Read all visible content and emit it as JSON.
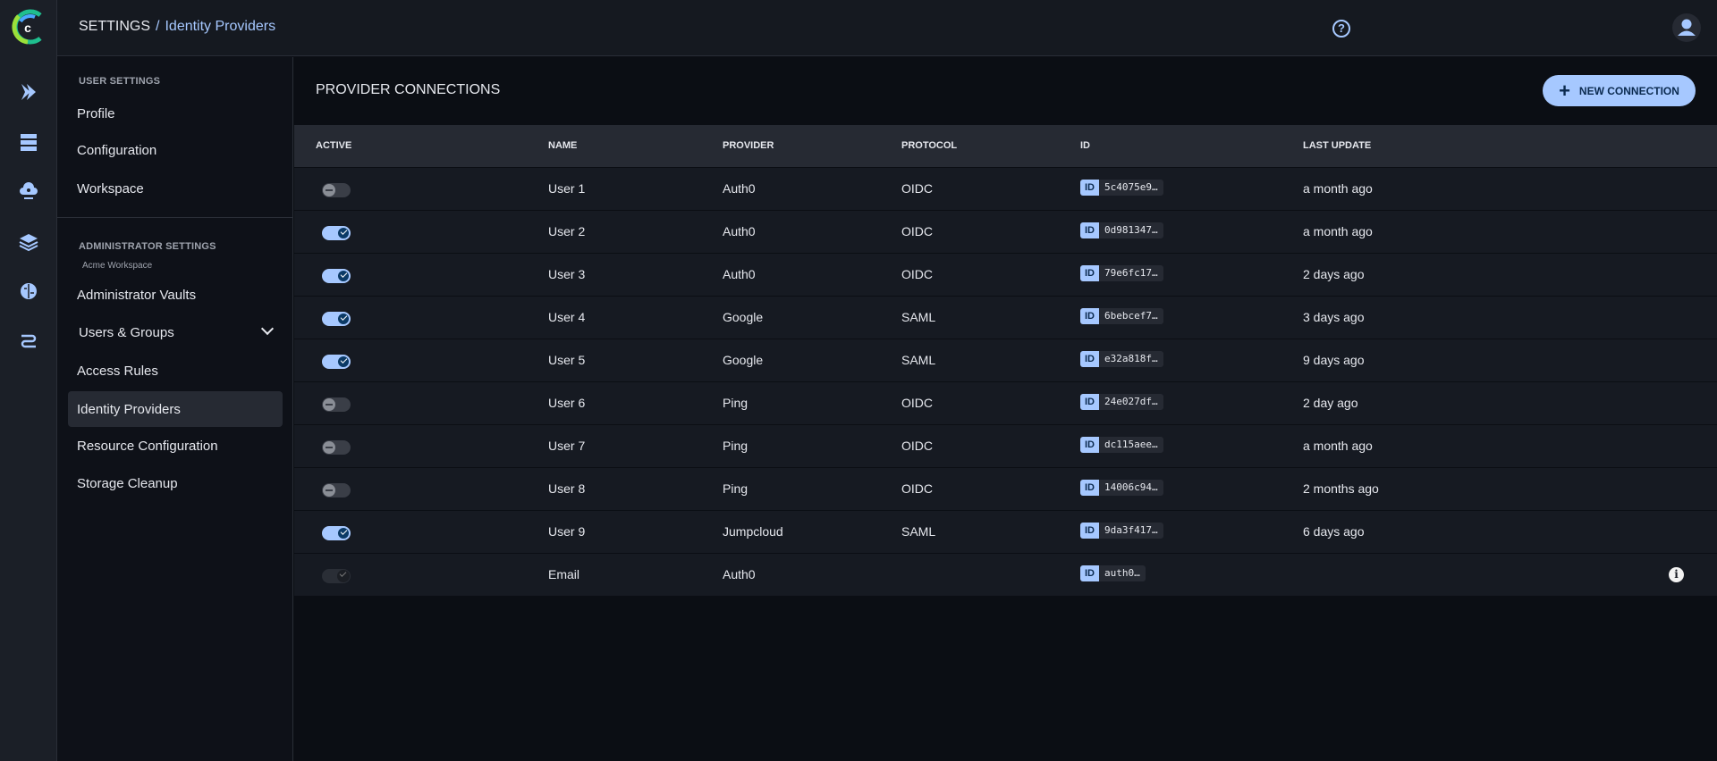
{
  "colors": {
    "accent": "#a6c8ff",
    "background": "#0b0e14",
    "row": "#161a22",
    "header": "#262a33"
  },
  "rail": {
    "icons": [
      "logo-icon",
      "pipelines-icon",
      "server-icon",
      "cloud-compute-icon",
      "layers-icon",
      "brain-icon",
      "workflow-icon"
    ]
  },
  "header": {
    "breadcrumb_root": "SETTINGS",
    "breadcrumb_sep": "/",
    "breadcrumb_current": "Identity Providers",
    "help_icon": "?"
  },
  "sidebar": {
    "user_label": "USER SETTINGS",
    "user_items": [
      {
        "label": "Profile"
      },
      {
        "label": "Configuration"
      },
      {
        "label": "Workspace"
      }
    ],
    "admin_label": "ADMINISTRATOR SETTINGS",
    "admin_workspace": "Acme Workspace",
    "admin_items": [
      {
        "label": "Administrator Vaults"
      },
      {
        "label": "Users & Groups"
      },
      {
        "label": "Access Rules"
      },
      {
        "label": "Identity Providers",
        "selected": true
      },
      {
        "label": "Resource Configuration"
      },
      {
        "label": "Storage Cleanup"
      }
    ]
  },
  "main": {
    "title": "PROVIDER CONNECTIONS",
    "new_button": "NEW CONNECTION",
    "plus": "+",
    "id_tag": "ID",
    "columns": [
      "ACTIVE",
      "NAME",
      "PROVIDER",
      "PROTOCOL",
      "ID",
      "LAST UPDATE"
    ],
    "rows": [
      {
        "active": false,
        "name": "User 1",
        "provider": "Auth0",
        "protocol": "OIDC",
        "id": "5c4075e9…",
        "updated": "a month ago"
      },
      {
        "active": true,
        "name": "User 2",
        "provider": "Auth0",
        "protocol": "OIDC",
        "id": "0d981347…",
        "updated": "a month ago"
      },
      {
        "active": true,
        "name": "User 3",
        "provider": "Auth0",
        "protocol": "OIDC",
        "id": "79e6fc17…",
        "updated": "2 days ago"
      },
      {
        "active": true,
        "name": "User 4",
        "provider": "Google",
        "protocol": "SAML",
        "id": "6bebcef7…",
        "updated": "3 days ago"
      },
      {
        "active": true,
        "name": "User 5",
        "provider": "Google",
        "protocol": "SAML",
        "id": "e32a818f…",
        "updated": "9 days ago"
      },
      {
        "active": false,
        "name": "User 6",
        "provider": "Ping",
        "protocol": "OIDC",
        "id": "24e027df…",
        "updated": "2 day ago"
      },
      {
        "active": false,
        "name": "User 7",
        "provider": "Ping",
        "protocol": "OIDC",
        "id": "dc115aee…",
        "updated": "a month ago"
      },
      {
        "active": false,
        "name": "User 8",
        "provider": "Ping",
        "protocol": "OIDC",
        "id": "14006c94…",
        "updated": "2 months ago"
      },
      {
        "active": true,
        "name": "User 9",
        "provider": "Jumpcloud",
        "protocol": "SAML",
        "id": "9da3f417…",
        "updated": "6 days ago"
      },
      {
        "active": true,
        "disabled": true,
        "name": "Email",
        "provider": "Auth0",
        "protocol": "",
        "id": "auth0…",
        "updated": "",
        "info": "i"
      }
    ]
  }
}
